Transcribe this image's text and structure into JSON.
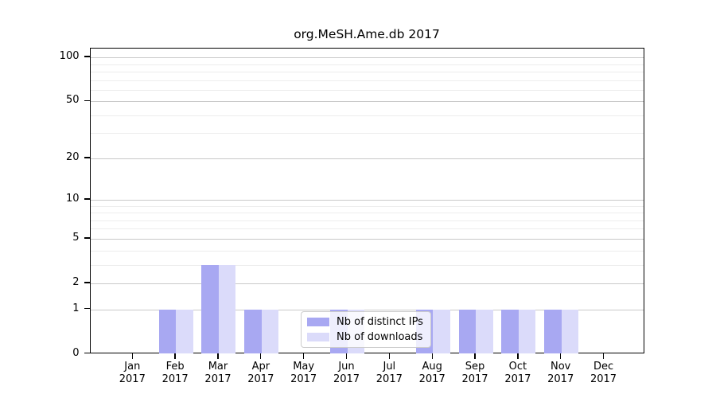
{
  "chart_data": {
    "type": "bar",
    "title": "org.MeSH.Ame.db 2017",
    "categories": [
      "Jan 2017",
      "Feb 2017",
      "Mar 2017",
      "Apr 2017",
      "May 2017",
      "Jun 2017",
      "Jul 2017",
      "Aug 2017",
      "Sep 2017",
      "Oct 2017",
      "Nov 2017",
      "Dec 2017"
    ],
    "series": [
      {
        "name": "Nb of distinct IPs",
        "color": "#a8a8f2",
        "values": [
          0,
          1,
          3,
          1,
          0,
          1,
          0,
          1,
          1,
          1,
          1,
          0
        ]
      },
      {
        "name": "Nb of downloads",
        "color": "#dbdbfa",
        "values": [
          0,
          1,
          3,
          1,
          0,
          1,
          0,
          1,
          1,
          1,
          1,
          0
        ]
      }
    ],
    "xlabel": "",
    "ylabel": "",
    "yscale": "log1p",
    "ylim": [
      0,
      115
    ],
    "y_major_ticks": [
      0,
      1,
      2,
      5,
      10,
      20,
      50,
      100
    ],
    "y_minor_ticks": [
      3,
      4,
      6,
      7,
      8,
      9,
      30,
      40,
      60,
      70,
      80,
      90
    ],
    "grid": "horizontal major and minor gridlines",
    "legend_position": "lower center inside plot"
  },
  "colors": {
    "bar_distinct_ips": "#a8a8f2",
    "bar_downloads": "#dbdbfa",
    "grid_major": "#c9c9c9",
    "grid_minor": "#ededed",
    "axis": "#000000",
    "legend_border": "#cccccc",
    "background": "#ffffff"
  }
}
